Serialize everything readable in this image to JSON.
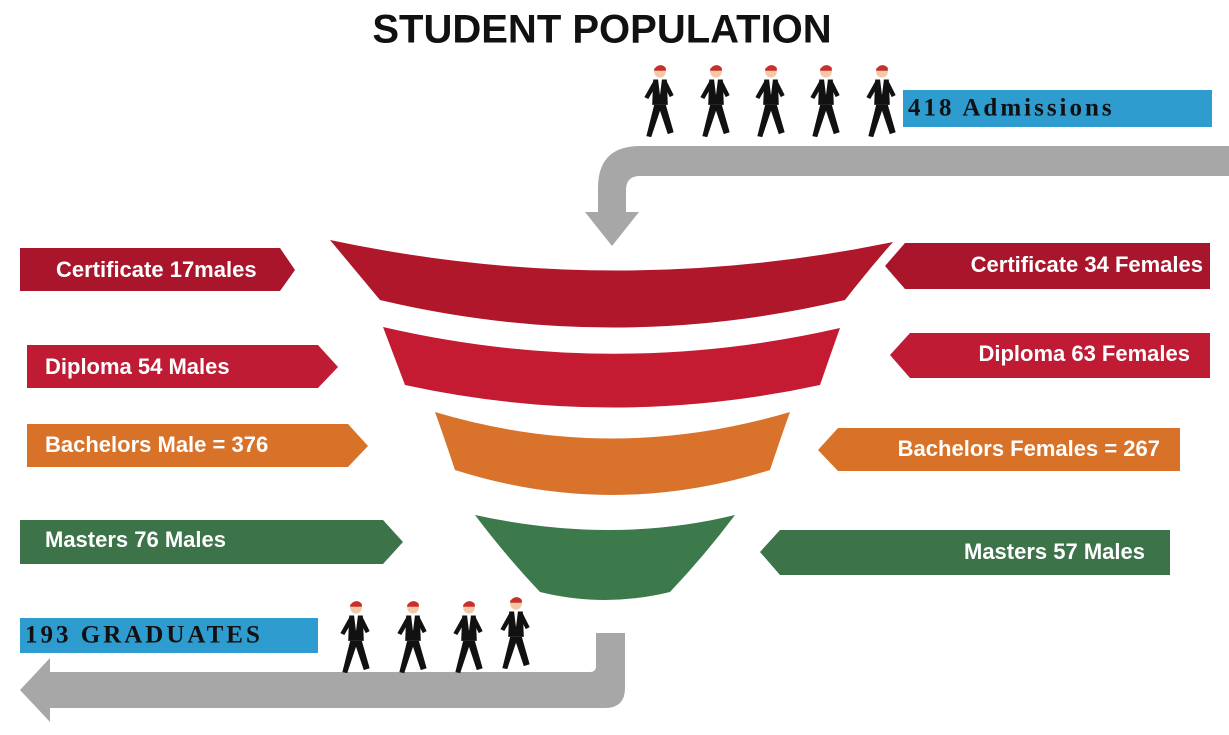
{
  "title": "STUDENT POPULATION",
  "admissions": "418 Admissions",
  "graduates": "193 GRADUATES",
  "levels": [
    {
      "left": "Certificate 17males",
      "right": "Certificate 34 Females"
    },
    {
      "left": "Diploma 54 Males",
      "right": "Diploma 63 Females"
    },
    {
      "left": "Bachelors Male = 376",
      "right": "Bachelors Females = 267"
    },
    {
      "left": "Masters 76 Males",
      "right": "Masters 57 Males"
    }
  ]
}
